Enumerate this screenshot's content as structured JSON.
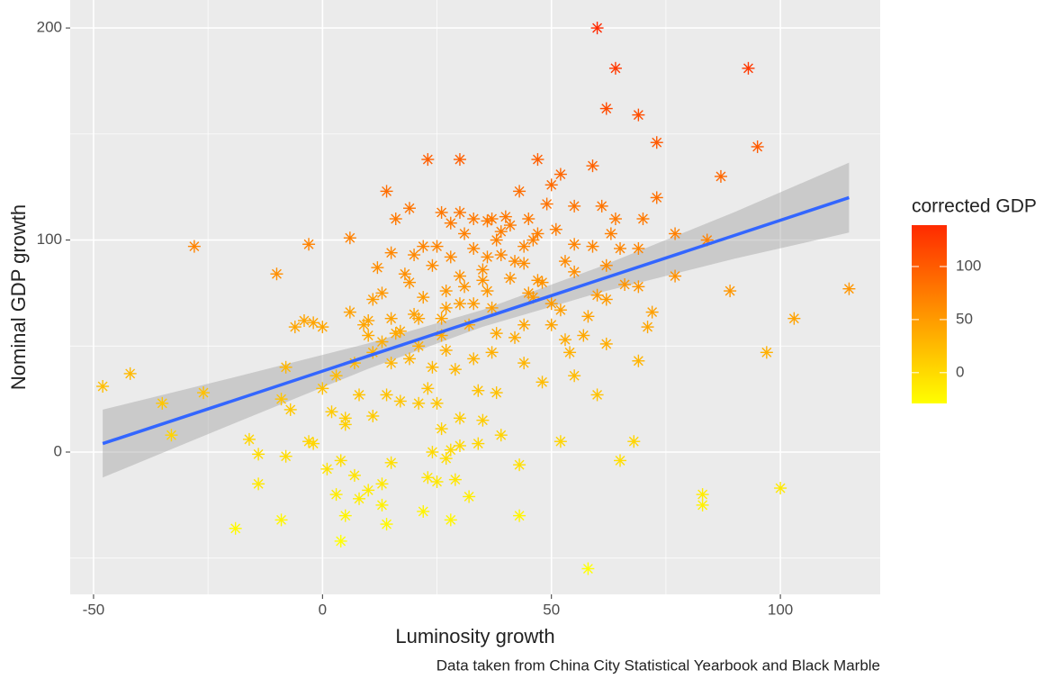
{
  "chart_data": {
    "type": "scatter",
    "x_label": "Luminosity growth",
    "y_label": "Nominal GDP growth",
    "caption": "Data taken from China City Statistical Yearbook and Black Marble",
    "xlim": [
      -55.1,
      121.8
    ],
    "ylim": [
      -67.1,
      213.2
    ],
    "xticks": [
      -50,
      0,
      50,
      100
    ],
    "yticks": [
      0,
      100,
      200
    ],
    "grid": true,
    "series": [
      {
        "x": [
          60,
          64,
          93,
          62,
          69,
          73,
          95,
          87,
          23,
          30,
          47,
          59,
          52,
          50,
          14,
          43,
          73,
          19,
          30,
          26,
          40,
          16,
          37,
          45,
          61,
          64,
          70,
          55,
          84,
          77,
          -28,
          -3,
          6,
          25,
          33,
          44,
          59,
          65,
          69,
          -10,
          15,
          20,
          28,
          36,
          42,
          53,
          62,
          77,
          89,
          115,
          103,
          97,
          69,
          71,
          72,
          69,
          60,
          55,
          48,
          46,
          35,
          30,
          24,
          13,
          11,
          15,
          20,
          6,
          -6,
          -2,
          0,
          10,
          10,
          17,
          21,
          26,
          32,
          38,
          44,
          50,
          57,
          62,
          53,
          54,
          55,
          48,
          44,
          42,
          37,
          33,
          27,
          24,
          19,
          15,
          11,
          7,
          3,
          0,
          -8,
          -7,
          -9,
          -3,
          -2,
          2,
          5,
          5,
          8,
          11,
          14,
          17,
          21,
          23,
          25,
          29,
          30,
          34,
          35,
          38,
          39,
          34,
          30,
          28,
          26,
          24,
          23,
          25,
          27,
          29,
          32,
          28,
          22,
          15,
          13,
          14,
          10,
          13,
          8,
          7,
          5,
          4,
          4,
          1,
          3,
          -8,
          -9,
          -14,
          -14,
          -16,
          -19,
          -33,
          -35,
          -42,
          -48,
          -26,
          -4,
          43,
          43,
          52,
          58,
          60,
          65,
          68,
          83,
          83,
          100,
          49,
          41,
          38,
          39,
          36,
          33,
          31,
          28,
          22,
          18,
          12,
          27,
          31,
          36,
          41,
          45,
          50,
          52,
          58,
          62,
          66,
          37,
          33,
          27,
          22,
          19,
          46,
          51,
          47,
          55,
          63,
          39,
          44,
          47,
          35,
          30,
          26,
          21,
          16,
          13,
          9
        ],
        "values": [
          200,
          181,
          181,
          162,
          159,
          146,
          144,
          130,
          138,
          138,
          138,
          135,
          131,
          126,
          123,
          123,
          120,
          115,
          113,
          113,
          111,
          110,
          110,
          110,
          116,
          110,
          110,
          116,
          100,
          103,
          97,
          98,
          101,
          97,
          96,
          97,
          97,
          96,
          96,
          84,
          94,
          93,
          92,
          92,
          90,
          90,
          88,
          83,
          76,
          77,
          63,
          47,
          43,
          59,
          66,
          78,
          74,
          85,
          80,
          73,
          86,
          83,
          88,
          75,
          72,
          63,
          65,
          66,
          59,
          61,
          59,
          62,
          55,
          57,
          50,
          55,
          60,
          56,
          60,
          60,
          55,
          51,
          53,
          47,
          36,
          33,
          42,
          54,
          47,
          44,
          48,
          40,
          44,
          42,
          47,
          42,
          36,
          30,
          40,
          20,
          25,
          5,
          4,
          19,
          16,
          13,
          27,
          17,
          27,
          24,
          23,
          30,
          23,
          39,
          16,
          29,
          15,
          28,
          8,
          4,
          3,
          1,
          11,
          0,
          -12,
          -14,
          -3,
          -13,
          -21,
          -32,
          -28,
          -5,
          -25,
          -34,
          -18,
          -15,
          -22,
          -11,
          -30,
          -42,
          -4,
          -8,
          -20,
          -2,
          -32,
          -15,
          -1,
          6,
          -36,
          8,
          23,
          37,
          31,
          28,
          62,
          -6,
          -30,
          5,
          -55,
          27,
          -4,
          5,
          -20,
          -25,
          -17,
          117,
          107,
          100,
          104,
          109,
          110,
          103,
          108,
          97,
          84,
          87,
          76,
          78,
          76,
          82,
          75,
          70,
          67,
          64,
          72,
          79,
          68,
          70,
          68,
          73,
          80,
          100,
          105,
          103,
          98,
          103,
          93,
          89,
          81,
          81,
          70,
          63,
          63,
          56,
          52,
          60
        ],
        "color_values": [
          140,
          127,
          127,
          113,
          111,
          102,
          101,
          91,
          97,
          97,
          97,
          95,
          92,
          88,
          86,
          86,
          84,
          81,
          79,
          79,
          78,
          77,
          77,
          77,
          81,
          77,
          77,
          81,
          70,
          72,
          68,
          69,
          71,
          68,
          67,
          68,
          68,
          67,
          67,
          59,
          66,
          65,
          64,
          64,
          63,
          63,
          62,
          58,
          53,
          54,
          44,
          33,
          30,
          41,
          46,
          55,
          52,
          60,
          56,
          51,
          60,
          58,
          62,
          53,
          50,
          44,
          46,
          46,
          41,
          43,
          41,
          43,
          39,
          40,
          35,
          39,
          42,
          39,
          42,
          42,
          39,
          36,
          37,
          33,
          25,
          23,
          29,
          38,
          33,
          31,
          34,
          28,
          31,
          29,
          33,
          29,
          25,
          21,
          28,
          14,
          18,
          4,
          3,
          13,
          11,
          9,
          19,
          12,
          19,
          17,
          16,
          21,
          16,
          27,
          11,
          20,
          11,
          20,
          6,
          3,
          2,
          1,
          8,
          0,
          -8,
          -10,
          -2,
          -9,
          -15,
          -22,
          -20,
          -4,
          -18,
          -24,
          -13,
          -11,
          -15,
          -8,
          -21,
          -29,
          -3,
          -6,
          -14,
          -1,
          -22,
          -11,
          -1,
          4,
          -25,
          6,
          16,
          26,
          22,
          20,
          43,
          -4,
          -21,
          4,
          -39,
          19,
          -3,
          4,
          -14,
          -18,
          -12,
          82,
          75,
          70,
          73,
          76,
          77,
          72,
          76,
          68,
          59,
          61,
          53,
          55,
          53,
          57,
          53,
          49,
          47,
          45,
          50,
          55,
          48,
          49,
          48,
          51,
          56,
          70,
          74,
          72,
          69,
          72,
          65,
          62,
          57,
          57,
          49,
          44,
          44,
          39,
          36,
          42
        ]
      }
    ],
    "color_scale": {
      "title": "corrected GDP",
      "clim": [
        -29,
        139
      ],
      "ticks": [
        0,
        50,
        100
      ],
      "colors": [
        "#ffff00",
        "#ff2a00"
      ]
    },
    "fit": {
      "color": "#3366ff",
      "x": [
        -48,
        -20,
        10,
        35,
        60,
        90,
        115
      ],
      "y": [
        4,
        23.9,
        45.3,
        63.1,
        80.9,
        102.2,
        120
      ],
      "lower": [
        -12,
        12.9,
        39.3,
        59.1,
        74.9,
        91.2,
        103.5
      ],
      "upper": [
        20,
        34.9,
        51.3,
        67.1,
        86.9,
        113.2,
        136.5
      ]
    }
  }
}
